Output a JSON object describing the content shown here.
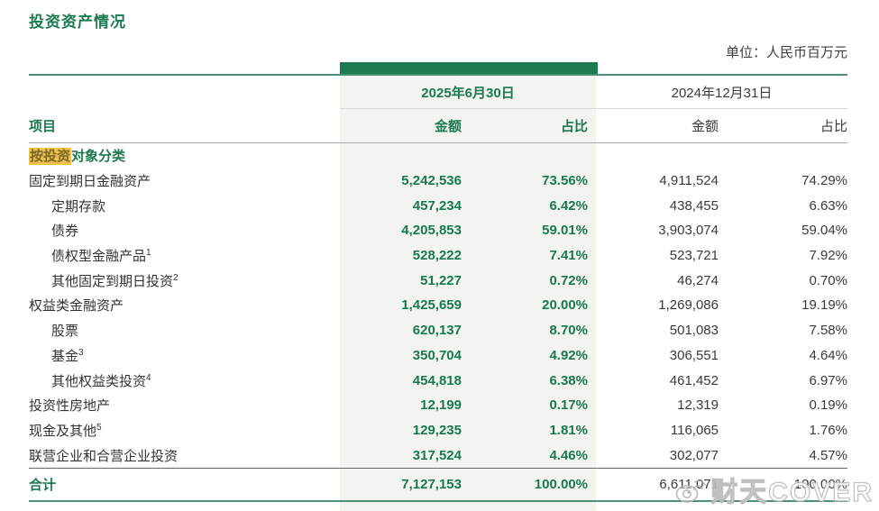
{
  "page": {
    "title": "投资资产情况",
    "unit_label": "单位：人民币百万元"
  },
  "colors": {
    "accent_green": "#1b7a4f",
    "bar_green": "#1e7b51",
    "band_gray": "#f3f3f0",
    "highlight_bg": "#edbf4d",
    "highlight_text": "#7a6825"
  },
  "table": {
    "period_headers": [
      "2025年6月30日",
      "2024年12月31日"
    ],
    "col_headers": {
      "item": "项目",
      "amount_2025": "金额",
      "share_2025": "占比",
      "amount_2024": "金额",
      "share_2024": "占比"
    },
    "rows": [
      {
        "type": "category",
        "highlight": "按投资",
        "rest": "对象分类",
        "a25": "",
        "p25": "",
        "a24": "",
        "p24": ""
      },
      {
        "label": "固定到期日金融资产",
        "sup": "",
        "indent": 0,
        "a25": "5,242,536",
        "p25": "73.56%",
        "a24": "4,911,524",
        "p24": "74.29%"
      },
      {
        "label": "定期存款",
        "sup": "",
        "indent": 1,
        "a25": "457,234",
        "p25": "6.42%",
        "a24": "438,455",
        "p24": "6.63%"
      },
      {
        "label": "债券",
        "sup": "",
        "indent": 1,
        "a25": "4,205,853",
        "p25": "59.01%",
        "a24": "3,903,074",
        "p24": "59.04%"
      },
      {
        "label": "债权型金融产品",
        "sup": "1",
        "indent": 1,
        "a25": "528,222",
        "p25": "7.41%",
        "a24": "523,721",
        "p24": "7.92%"
      },
      {
        "label": "其他固定到期日投资",
        "sup": "2",
        "indent": 1,
        "a25": "51,227",
        "p25": "0.72%",
        "a24": "46,274",
        "p24": "0.70%"
      },
      {
        "label": "权益类金融资产",
        "sup": "",
        "indent": 0,
        "a25": "1,425,659",
        "p25": "20.00%",
        "a24": "1,269,086",
        "p24": "19.19%"
      },
      {
        "label": "股票",
        "sup": "",
        "indent": 1,
        "a25": "620,137",
        "p25": "8.70%",
        "a24": "501,083",
        "p24": "7.58%"
      },
      {
        "label": "基金",
        "sup": "3",
        "indent": 1,
        "a25": "350,704",
        "p25": "4.92%",
        "a24": "306,551",
        "p24": "4.64%"
      },
      {
        "label": "其他权益类投资",
        "sup": "4",
        "indent": 1,
        "a25": "454,818",
        "p25": "6.38%",
        "a24": "461,452",
        "p24": "6.97%"
      },
      {
        "label": "投资性房地产",
        "sup": "",
        "indent": 0,
        "a25": "12,199",
        "p25": "0.17%",
        "a24": "12,319",
        "p24": "0.19%"
      },
      {
        "label": "现金及其他",
        "sup": "5",
        "indent": 0,
        "a25": "129,235",
        "p25": "1.81%",
        "a24": "116,065",
        "p24": "1.76%"
      },
      {
        "label": "联营企业和合营企业投资",
        "sup": "",
        "indent": 0,
        "a25": "317,524",
        "p25": "4.46%",
        "a24": "302,077",
        "p24": "4.57%"
      }
    ],
    "total_row": {
      "label": "合计",
      "a25": "7,127,153",
      "p25": "100.00%",
      "a24": "6,611,071",
      "p24": "100.00%"
    }
  },
  "watermark": {
    "icon": "weibo-icon",
    "text": "财天COVER"
  }
}
